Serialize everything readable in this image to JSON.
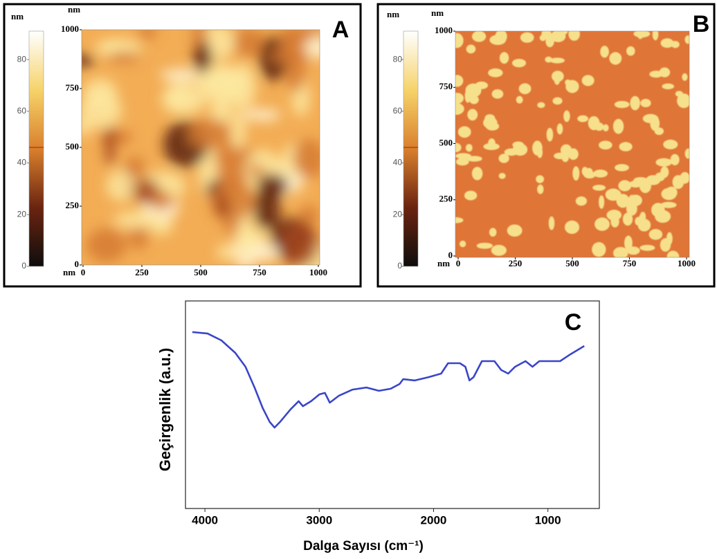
{
  "chart_data": [
    {
      "type": "heatmap",
      "title": "A",
      "colorbar_label": "nm",
      "x_label": "nm",
      "y_label": "nm",
      "xlim": [
        0,
        1000
      ],
      "xticks": [
        0,
        250,
        500,
        750,
        1000
      ],
      "ylim": [
        0,
        1000
      ],
      "yticks": [
        0,
        250,
        500,
        750,
        1000
      ],
      "clim": [
        0,
        91
      ],
      "cticks": [
        0,
        20,
        40,
        60,
        80
      ],
      "colorbar_marker": 46
    },
    {
      "type": "heatmap",
      "title": "B",
      "colorbar_label": "nm",
      "x_label": "nm",
      "y_label": "nm",
      "xlim": [
        0,
        1000
      ],
      "xticks": [
        0,
        250,
        500,
        750,
        1000
      ],
      "ylim": [
        0,
        1000
      ],
      "yticks": [
        0,
        250,
        500,
        750,
        1000
      ],
      "clim": [
        0,
        91
      ],
      "cticks": [
        0,
        20,
        40,
        60,
        80
      ],
      "colorbar_marker": 46
    },
    {
      "type": "line",
      "title": "C",
      "x_label": "Dalga Sayısı (cm⁻¹)",
      "y_label": "Geçirgenlik (a.u.)",
      "xlim": [
        4170,
        550
      ],
      "xticks": [
        4000,
        3000,
        2000,
        1000
      ],
      "ylim": [
        0,
        100
      ],
      "color": "#3a45c8",
      "x": [
        4110,
        3977,
        3856,
        3735,
        3645,
        3566,
        3494,
        3433,
        3391,
        3343,
        3252,
        3180,
        3143,
        3071,
        2998,
        2950,
        2908,
        2829,
        2708,
        2587,
        2478,
        2375,
        2297,
        2266,
        2164,
        2043,
        1934,
        1873,
        1770,
        1722,
        1686,
        1650,
        1577,
        1468,
        1408,
        1347,
        1287,
        1196,
        1135,
        1075,
        893,
        803,
        682
      ],
      "values": [
        85,
        84.3,
        81,
        75,
        68.3,
        58.3,
        48.3,
        41.7,
        39,
        41.7,
        47.7,
        51.7,
        49.3,
        51.7,
        55,
        55.7,
        51,
        54.3,
        57.3,
        58.3,
        56.7,
        57.7,
        60,
        62.3,
        61.7,
        63.3,
        65,
        70,
        70,
        68.3,
        61.7,
        63.3,
        71,
        71,
        66.7,
        65,
        68.3,
        71,
        68.3,
        71,
        71,
        74.3,
        78.3
      ]
    }
  ]
}
